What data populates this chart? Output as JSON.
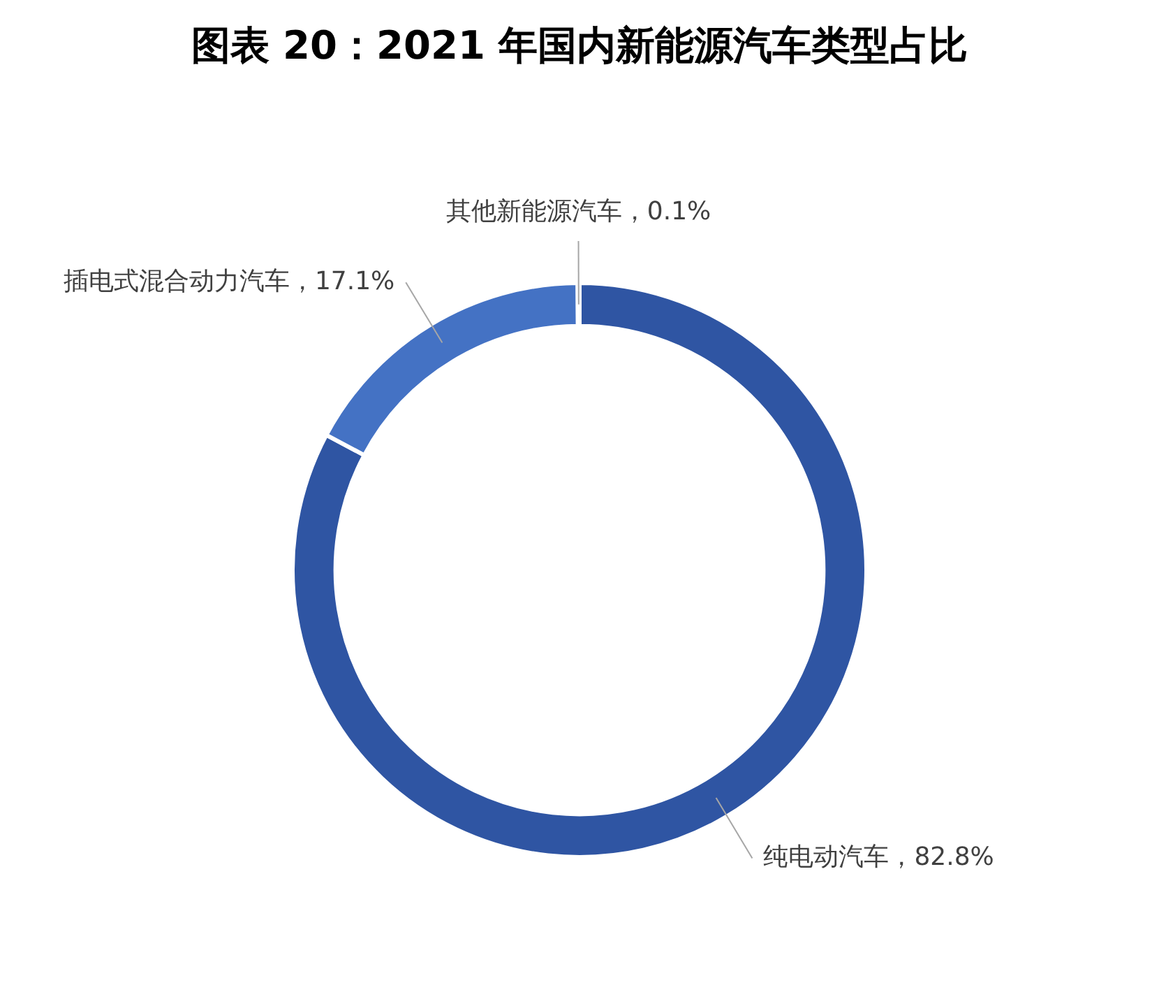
{
  "chart_data": {
    "type": "donut",
    "title": "图表 20：2021 年国内新能源汽车类型占比",
    "categories": [
      "纯电动汽车",
      "插电式混合动力汽车",
      "其他新能源汽车"
    ],
    "values": [
      82.8,
      17.1,
      0.1
    ],
    "colors": [
      "#2f55a3",
      "#4472c4",
      "#9fb4de"
    ],
    "value_labels": [
      "82.8%",
      "17.1%",
      "0.1%"
    ],
    "legend": false
  }
}
